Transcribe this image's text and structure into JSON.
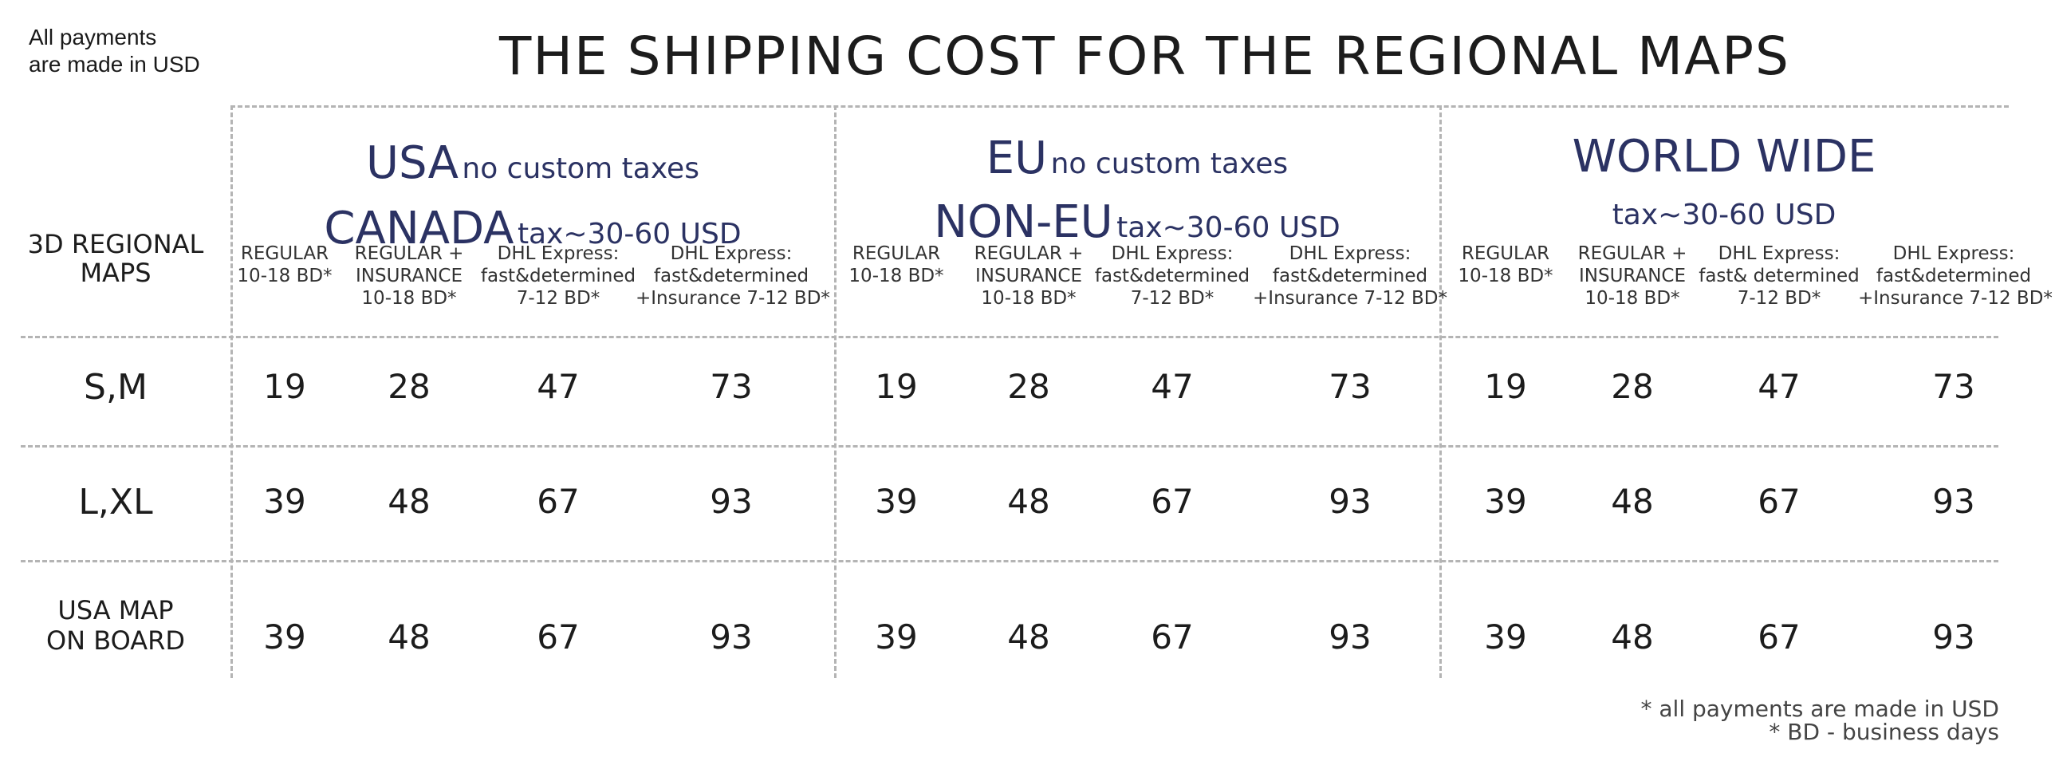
{
  "top_note": {
    "line1": "All payments",
    "line2": "are made in USD"
  },
  "title": "THE SHIPPING COST FOR THE REGIONAL MAPS",
  "row_header": {
    "line1": "3D REGIONAL",
    "line2": "MAPS"
  },
  "regions": [
    {
      "name1": "USA",
      "note1": "no custom taxes",
      "name2": "CANADA",
      "note2": "tax~30-60 USD",
      "columns": [
        {
          "l1": "REGULAR",
          "l2": "10-18 BD*",
          "l3": ""
        },
        {
          "l1": "REGULAR  +",
          "l2": "INSURANCE",
          "l3": "10-18 BD*"
        },
        {
          "l1": "DHL Express:",
          "l2": "fast&determined",
          "l3": "7-12 BD*"
        },
        {
          "l1": "DHL Express:",
          "l2": "fast&determined",
          "l3": "+Insurance 7-12 BD*"
        }
      ]
    },
    {
      "name1": "EU",
      "note1": "no custom taxes",
      "name2": "NON-EU",
      "note2": "tax~30-60 USD",
      "columns": [
        {
          "l1": "REGULAR",
          "l2": "10-18 BD*",
          "l3": ""
        },
        {
          "l1": "REGULAR  +",
          "l2": "INSURANCE",
          "l3": "10-18 BD*"
        },
        {
          "l1": "DHL Express:",
          "l2": "fast&determined",
          "l3": "7-12 BD*"
        },
        {
          "l1": "DHL Express:",
          "l2": "fast&determined",
          "l3": "+Insurance 7-12 BD*"
        }
      ]
    },
    {
      "name1": "WORLD WIDE",
      "note1": "",
      "name2": "",
      "note2": "tax~30-60 USD",
      "columns": [
        {
          "l1": "REGULAR",
          "l2": "10-18 BD*",
          "l3": ""
        },
        {
          "l1": "REGULAR  +",
          "l2": "INSURANCE",
          "l3": "10-18 BD*"
        },
        {
          "l1": "DHL Express:",
          "l2": "fast& determined",
          "l3": "7-12 BD*"
        },
        {
          "l1": "DHL Express:",
          "l2": "fast&determined",
          "l3": "+Insurance 7-12 BD*"
        }
      ]
    }
  ],
  "rows": [
    {
      "label1": "S,M",
      "label2": "",
      "values": [
        "19",
        "28",
        "47",
        "73",
        "19",
        "28",
        "47",
        "73",
        "19",
        "28",
        "47",
        "73"
      ]
    },
    {
      "label1": "L,XL",
      "label2": "",
      "values": [
        "39",
        "48",
        "67",
        "93",
        "39",
        "48",
        "67",
        "93",
        "39",
        "48",
        "67",
        "93"
      ]
    },
    {
      "label1": "USA MAP",
      "label2": "ON BOARD",
      "values": [
        "39",
        "48",
        "67",
        "93",
        "39",
        "48",
        "67",
        "93",
        "39",
        "48",
        "67",
        "93"
      ]
    }
  ],
  "footer": {
    "line1": "* all payments are made in USD",
    "line2": "* BD - business days"
  },
  "colors": {
    "navy": "#2b3263",
    "grid": "#b4b4b4",
    "text": "#1c1c1c"
  }
}
